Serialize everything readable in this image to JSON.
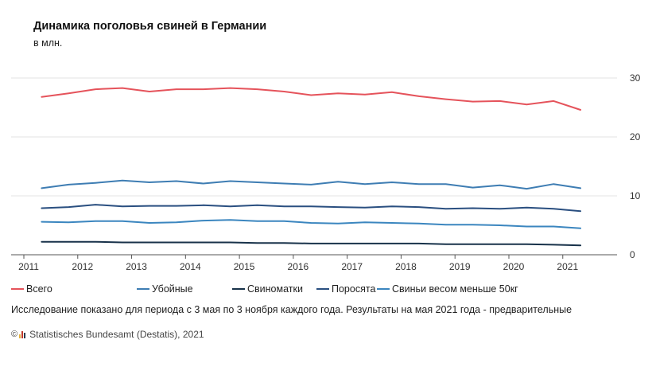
{
  "header": {
    "title": "Динамика поголовья свиней в Германии",
    "subtitle": "в млн."
  },
  "chart_data": {
    "type": "line",
    "xlim": [
      2011,
      2021.8
    ],
    "ylim": [
      0,
      30
    ],
    "x_ticks": [
      2011,
      2012,
      2013,
      2014,
      2015,
      2016,
      2017,
      2018,
      2019,
      2020,
      2021
    ],
    "y_ticks": [
      0,
      10,
      20,
      30
    ],
    "grid": "horizontal",
    "y_axis_position": "right",
    "legend_position": "bottom",
    "x": [
      2011.33,
      2011.83,
      2012.33,
      2012.83,
      2013.33,
      2013.83,
      2014.33,
      2014.83,
      2015.33,
      2015.83,
      2016.33,
      2016.83,
      2017.33,
      2017.83,
      2018.33,
      2018.83,
      2019.33,
      2019.83,
      2020.33,
      2020.83,
      2021.33
    ],
    "series": [
      {
        "name": "Всего",
        "color": "#e5535b",
        "values": [
          26.8,
          27.4,
          28.1,
          28.3,
          27.7,
          28.1,
          28.1,
          28.3,
          28.1,
          27.7,
          27.1,
          27.4,
          27.2,
          27.6,
          26.9,
          26.4,
          26.0,
          26.1,
          25.5,
          26.1,
          24.6
        ]
      },
      {
        "name": "Убойные",
        "color": "#3e7db3",
        "values": [
          11.3,
          11.9,
          12.2,
          12.6,
          12.3,
          12.5,
          12.1,
          12.5,
          12.3,
          12.1,
          11.9,
          12.4,
          12.0,
          12.3,
          12.0,
          12.0,
          11.4,
          11.8,
          11.2,
          12.0,
          11.3
        ]
      },
      {
        "name": "Свиноматки",
        "color": "#18324a",
        "values": [
          2.2,
          2.2,
          2.2,
          2.1,
          2.1,
          2.1,
          2.1,
          2.1,
          2.0,
          2.0,
          1.9,
          1.9,
          1.9,
          1.9,
          1.9,
          1.8,
          1.8,
          1.8,
          1.8,
          1.7,
          1.6
        ]
      },
      {
        "name": "Поросята",
        "color": "#2a4f80",
        "values": [
          7.9,
          8.1,
          8.5,
          8.2,
          8.3,
          8.3,
          8.4,
          8.2,
          8.4,
          8.2,
          8.2,
          8.1,
          8.0,
          8.2,
          8.1,
          7.8,
          7.9,
          7.8,
          8.0,
          7.8,
          7.4
        ]
      },
      {
        "name": "Свиньи весом меньше 50кг",
        "color": "#3b86bf",
        "values": [
          5.6,
          5.5,
          5.7,
          5.7,
          5.4,
          5.5,
          5.8,
          5.9,
          5.7,
          5.7,
          5.4,
          5.3,
          5.5,
          5.4,
          5.3,
          5.1,
          5.1,
          5.0,
          4.8,
          4.8,
          4.5
        ]
      }
    ]
  },
  "legend": [
    {
      "label": "Всего",
      "color": "#e5535b"
    },
    {
      "label": "Убойные",
      "color": "#3e7db3"
    },
    {
      "label": "Свиноматки",
      "color": "#18324a"
    },
    {
      "label": "Поросята",
      "color": "#2a4f80"
    },
    {
      "label": "Свиньи весом меньше 50кг",
      "color": "#3b86bf"
    }
  ],
  "note": "Исследование показано для периода с 3 мая по 3 ноября каждого года. Результаты на мая 2021 года - предварительные",
  "source": {
    "copyright_icon": "©",
    "logo_icon": "destatis-logo-icon",
    "text": "Statistisches Bundesamt (Destatis), 2021"
  }
}
